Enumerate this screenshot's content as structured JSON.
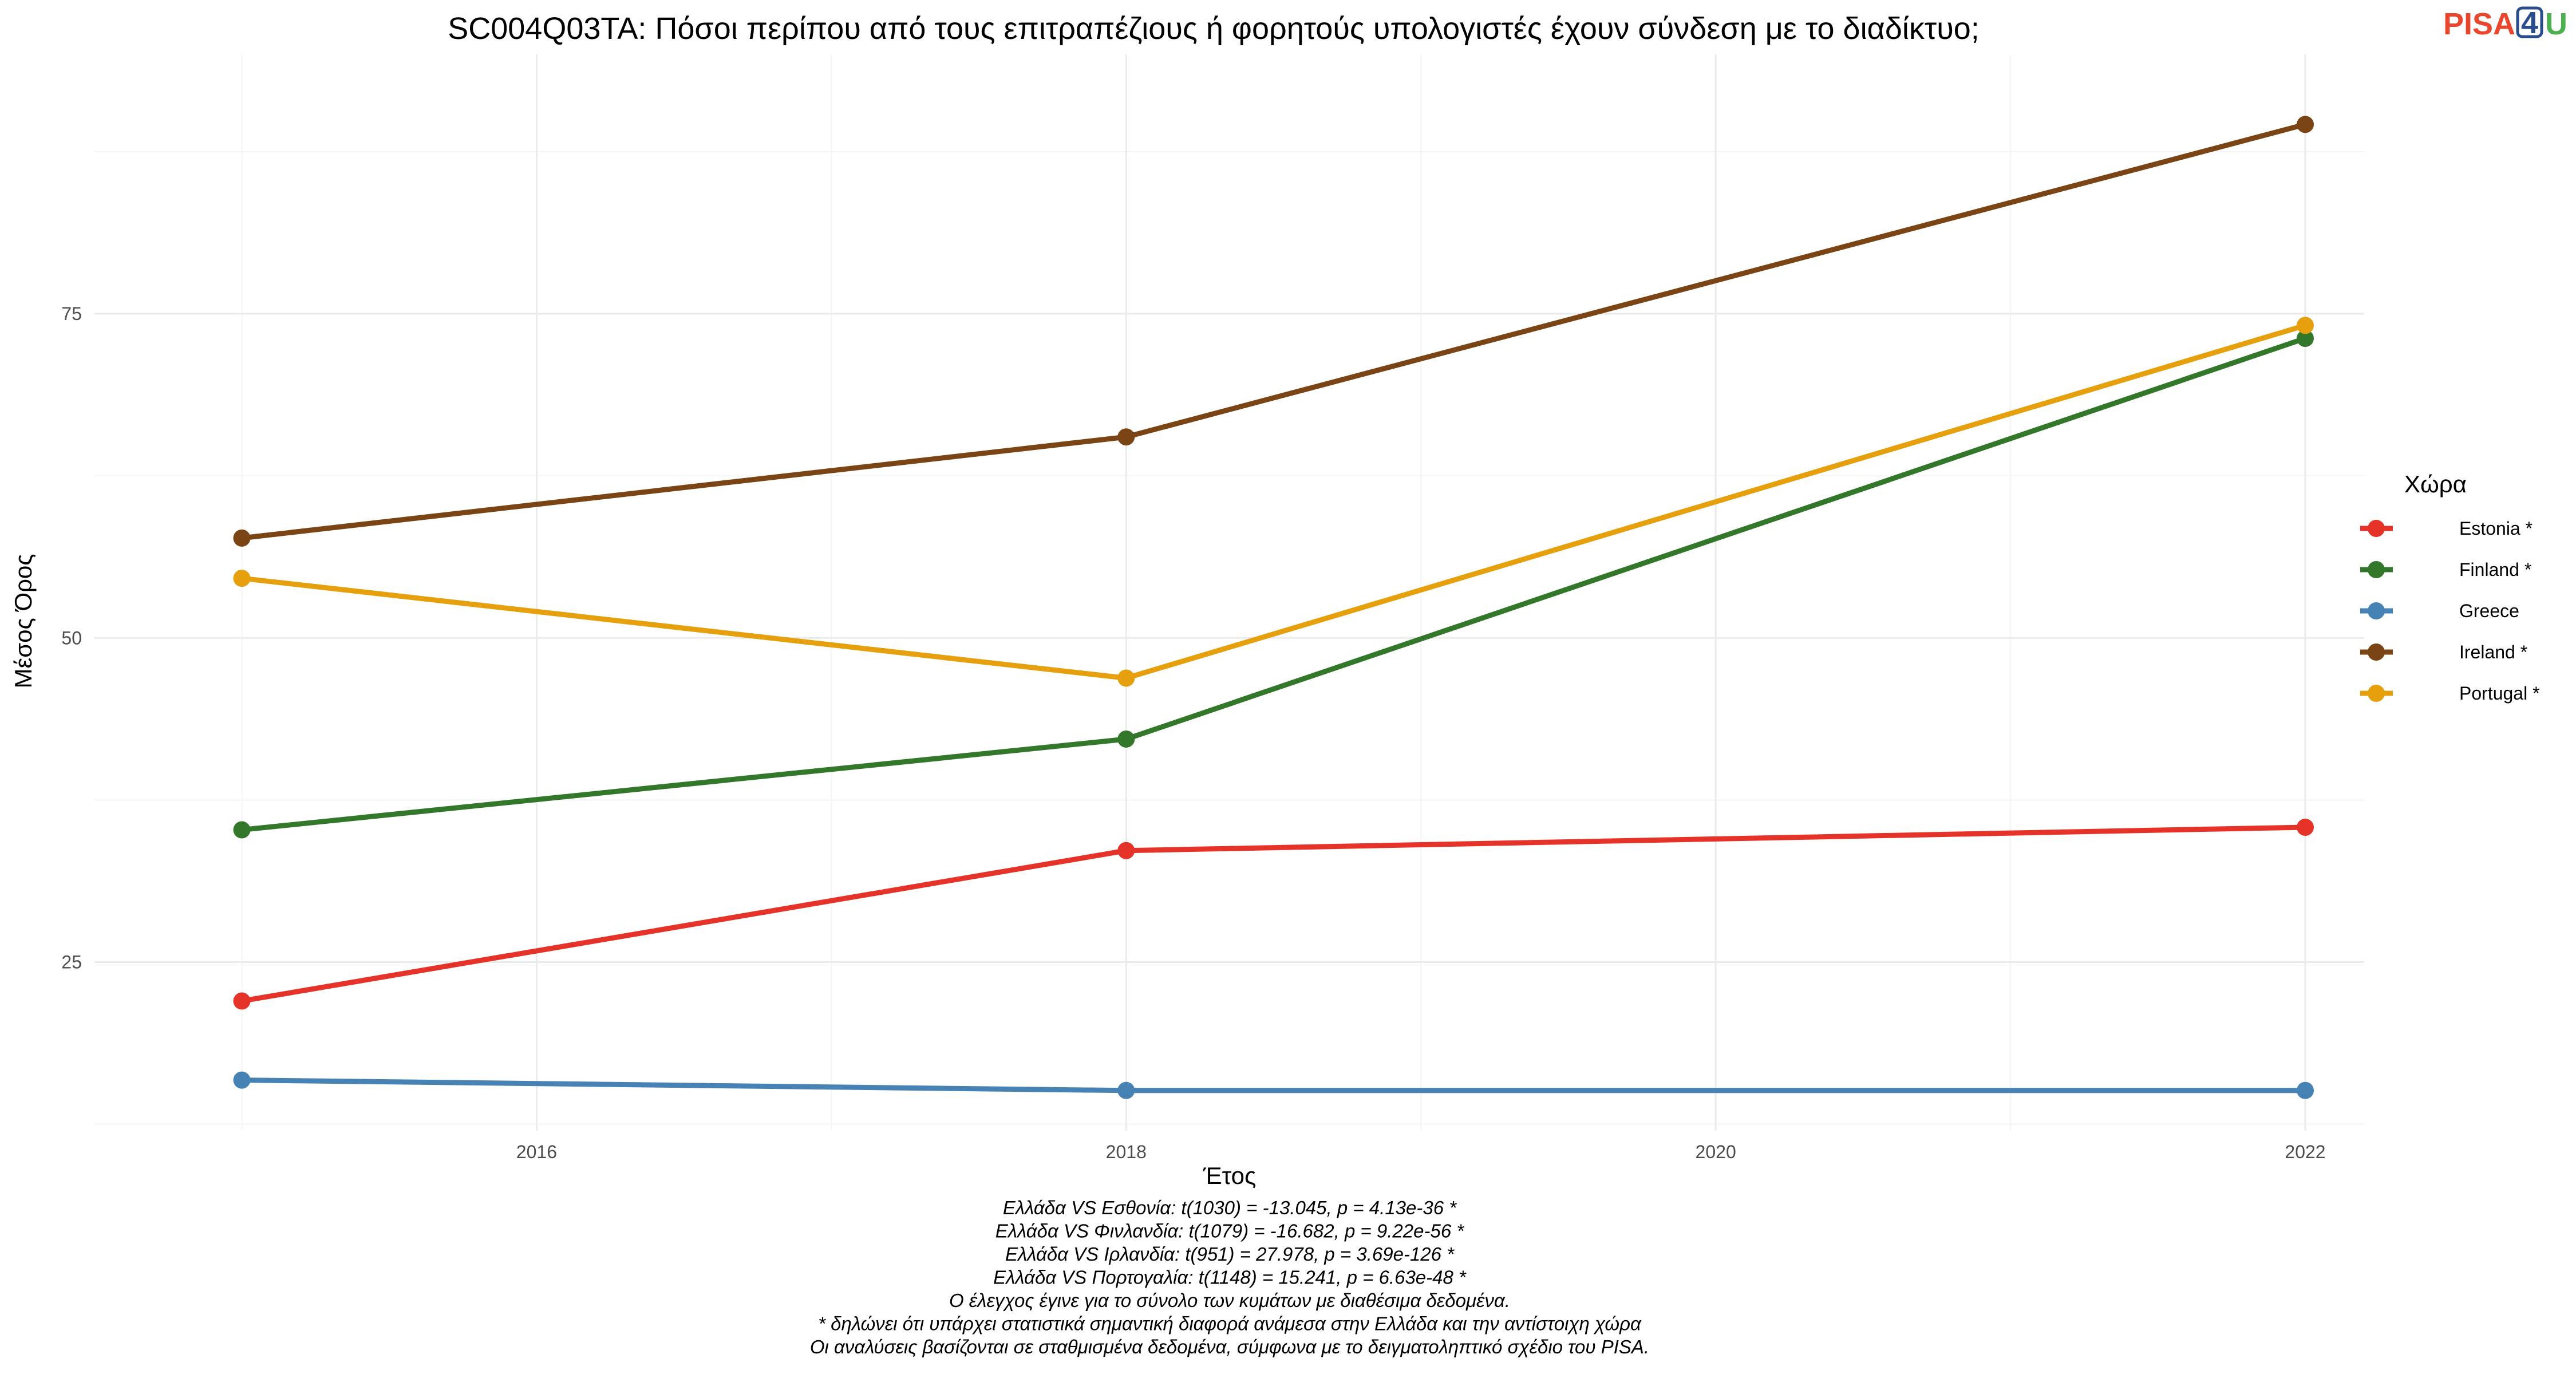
{
  "logo": {
    "part1": "PISA",
    "part2": "4",
    "part3": "U",
    "color1": "#e8472e",
    "color2": "#2a4d8f",
    "color3": "#4caf50"
  },
  "chart_data": {
    "type": "line",
    "title": "SC004Q03TA: Πόσοι περίπου από τους επιτραπέζιους ή φορητούς υπολογιστές έχουν σύνδεση με το διαδίκτυο;",
    "xlabel": "Έτος",
    "ylabel": "Μέσος Όρος",
    "x": [
      2015,
      2018,
      2022
    ],
    "xlim": [
      2014.5,
      2022.2
    ],
    "ylim": [
      12,
      95
    ],
    "xticks": [
      2016,
      2018,
      2020,
      2022
    ],
    "yticks": [
      25,
      50,
      75
    ],
    "grid": true,
    "legend_title": "Χώρα",
    "legend_position": "right",
    "series": [
      {
        "name": "Estonia *",
        "color": "#e63329",
        "values": [
          22.0,
          33.6,
          35.4
        ]
      },
      {
        "name": "Finland *",
        "color": "#33782a",
        "values": [
          35.2,
          42.2,
          73.1
        ]
      },
      {
        "name": "Greece",
        "color": "#4682b4",
        "values": [
          15.9,
          15.1,
          15.1
        ]
      },
      {
        "name": "Ireland *",
        "color": "#7b4414",
        "values": [
          57.7,
          65.5,
          89.6
        ]
      },
      {
        "name": "Portugal *",
        "color": "#e6a00e",
        "values": [
          54.6,
          46.9,
          74.1
        ]
      }
    ]
  },
  "caption": [
    "Ελλάδα VS Εσθονία: t(1030) = -13.045, p = 4.13e-36 *",
    "Ελλάδα VS Φινλανδία: t(1079) = -16.682, p = 9.22e-56 *",
    "Ελλάδα VS Ιρλανδία: t(951) = 27.978, p = 3.69e-126 *",
    "Ελλάδα VS Πορτογαλία: t(1148) = 15.241, p = 6.63e-48 *",
    "Ο έλεγχος έγινε για το σύνολο των κυμάτων με διαθέσιμα δεδομένα.",
    "* δηλώνει ότι υπάρχει στατιστικά σημαντική διαφορά ανάμεσα στην Ελλάδα και την αντίστοιχη χώρα",
    "Οι αναλύσεις βασίζονται σε σταθμισμένα δεδομένα, σύμφωνα με το δειγματοληπτικό σχέδιο του PISA."
  ]
}
